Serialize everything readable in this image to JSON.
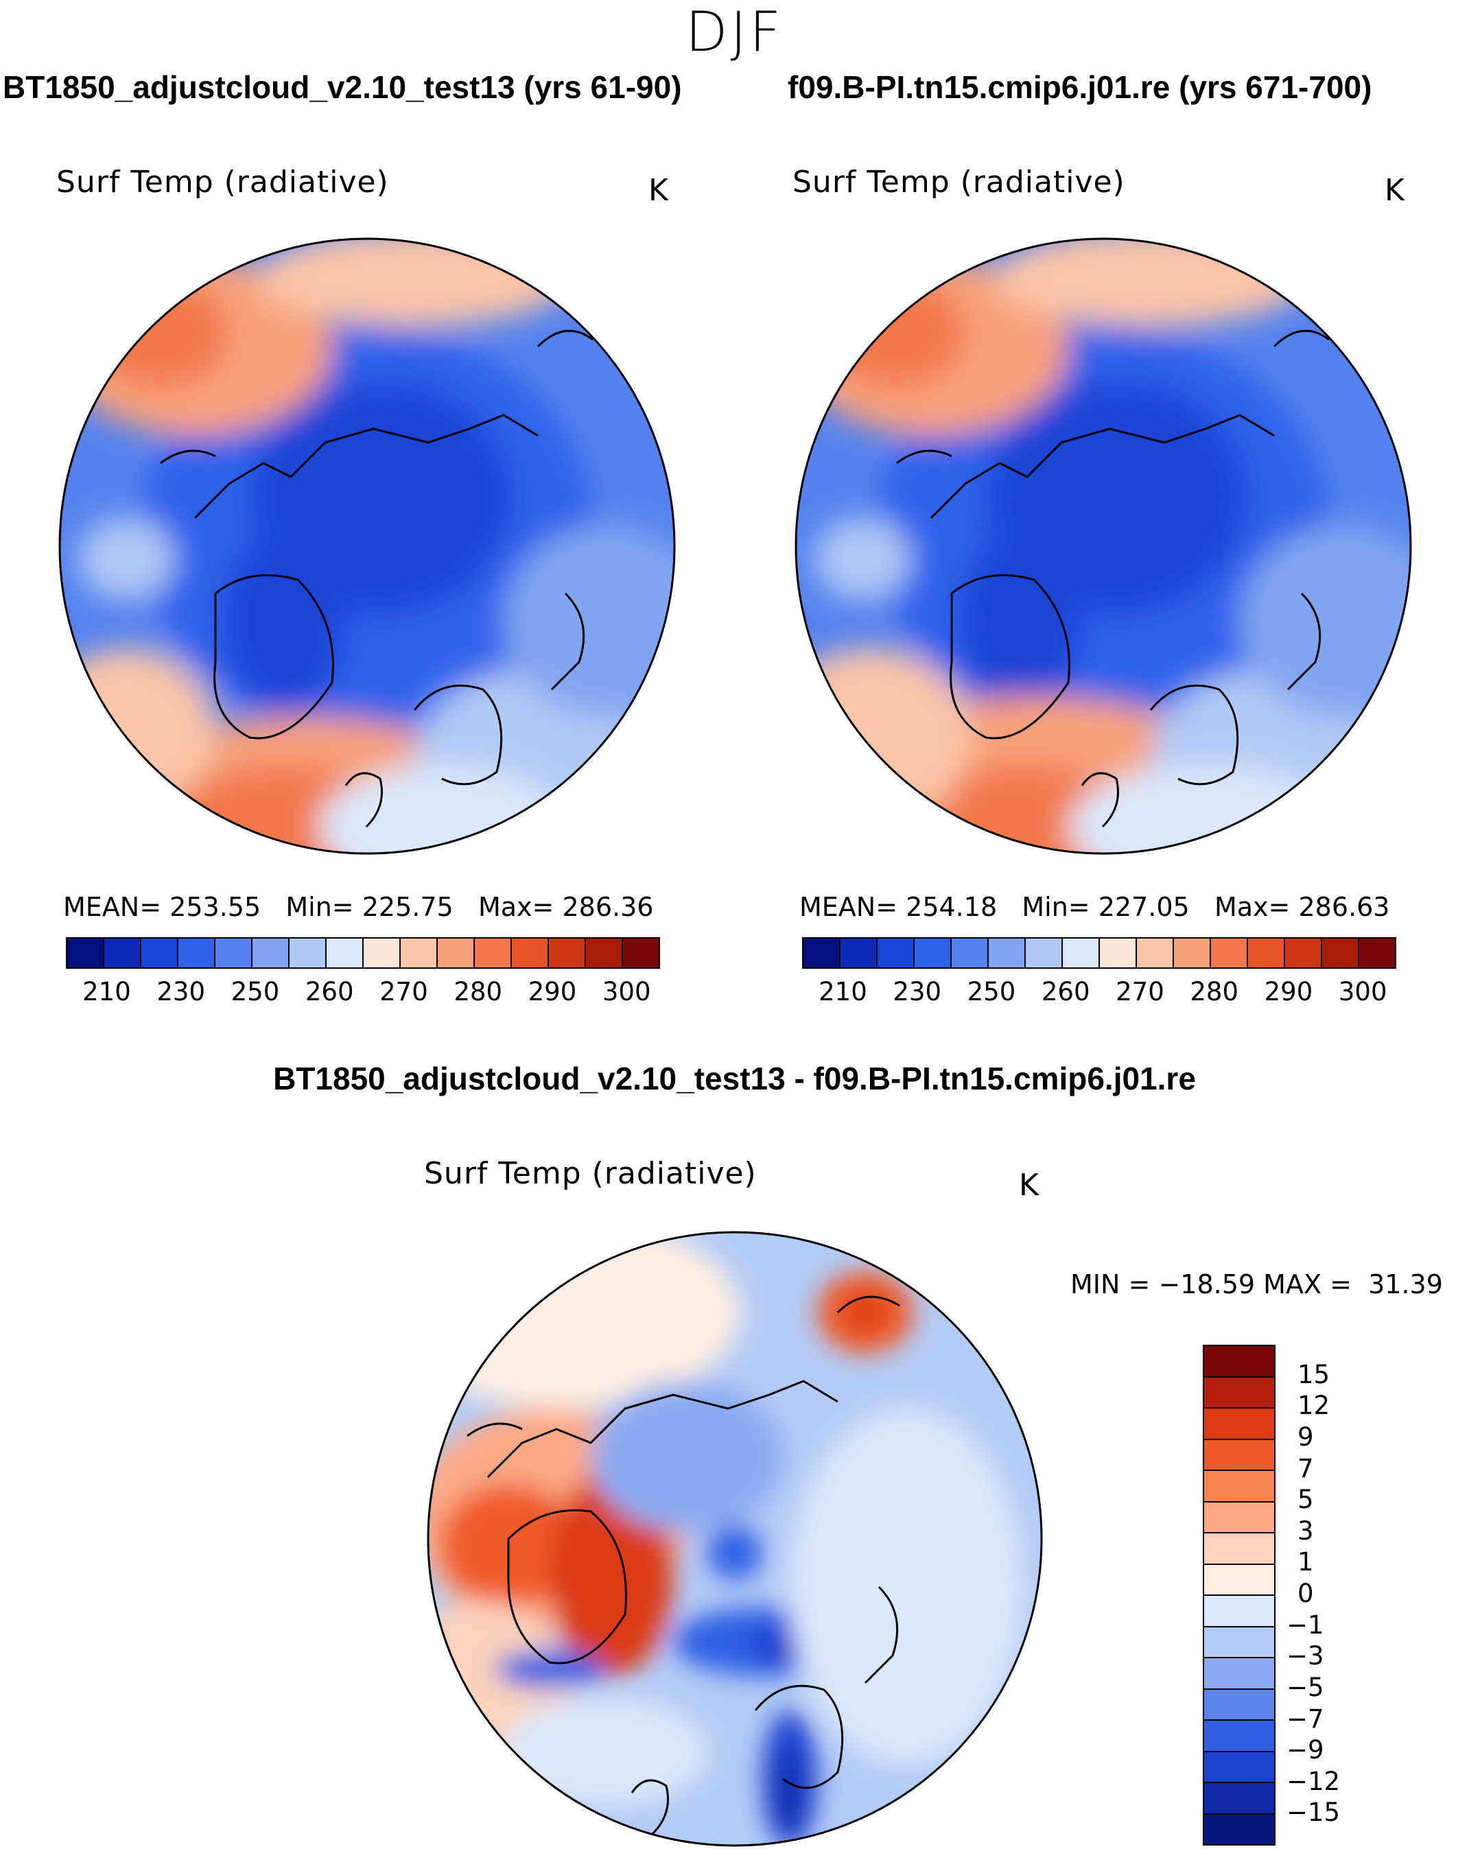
{
  "figure": {
    "season": "DJF",
    "case_a_title": "BT1850_adjustcloud_v2.10_test13 (yrs 61-90)",
    "case_b_title": "f09.B-PI.tn15.cmip6.j01.re (yrs 671-700)",
    "diff_title": "BT1850_adjustcloud_v2.10_test13 - f09.B-PI.tn15.cmip6.j01.re"
  },
  "chart_data": [
    {
      "type": "heatmap",
      "projection": "north polar stereographic",
      "title": "Surf Temp (radiative)",
      "units": "K",
      "stats": {
        "mean_label": "MEAN=",
        "mean": "253.55",
        "min_label": "Min=",
        "min": "225.75",
        "max_label": "Max=",
        "max": "286.36"
      },
      "colorbar": {
        "ticks": [
          "210",
          "230",
          "250",
          "260",
          "270",
          "280",
          "290",
          "300"
        ],
        "colors": [
          "#05107f",
          "#0a2ab5",
          "#1a45d8",
          "#2f62ea",
          "#5582ee",
          "#82a5f1",
          "#b0c9f6",
          "#dbe8fb",
          "#fde6d8",
          "#fbc5a8",
          "#f7a07a",
          "#f2784c",
          "#e8542a",
          "#cf3415",
          "#a91c0a",
          "#7a0707"
        ]
      }
    },
    {
      "type": "heatmap",
      "projection": "north polar stereographic",
      "title": "Surf Temp (radiative)",
      "units": "K",
      "stats": {
        "mean_label": "MEAN=",
        "mean": "254.18",
        "min_label": "Min=",
        "min": "227.05",
        "max_label": "Max=",
        "max": "286.63"
      },
      "colorbar": {
        "ticks": [
          "210",
          "230",
          "250",
          "260",
          "270",
          "280",
          "290",
          "300"
        ],
        "colors": [
          "#05107f",
          "#0a2ab5",
          "#1a45d8",
          "#2f62ea",
          "#5582ee",
          "#82a5f1",
          "#b0c9f6",
          "#dbe8fb",
          "#fde6d8",
          "#fbc5a8",
          "#f7a07a",
          "#f2784c",
          "#e8542a",
          "#cf3415",
          "#a91c0a",
          "#7a0707"
        ]
      }
    },
    {
      "type": "heatmap",
      "projection": "north polar stereographic",
      "title": "Surf Temp (radiative)",
      "units": "K",
      "stats": {
        "min_label": "MIN =",
        "min": "−18.59",
        "max_label": "MAX =",
        "max": "31.39"
      },
      "colorbar": {
        "ticks": [
          "15",
          "12",
          "9",
          "7",
          "5",
          "3",
          "1",
          "0",
          "−1",
          "−3",
          "−5",
          "−7",
          "−9",
          "−12",
          "−15"
        ],
        "colors": [
          "#7a0707",
          "#b4200c",
          "#dc3a14",
          "#f05a28",
          "#f58453",
          "#fba985",
          "#fcd2bc",
          "#fdeee3",
          "#dbe8fb",
          "#b3cbf6",
          "#89aaf1",
          "#5a86ec",
          "#2f60e4",
          "#1b43d0",
          "#0f2aa8",
          "#061580"
        ]
      }
    }
  ]
}
